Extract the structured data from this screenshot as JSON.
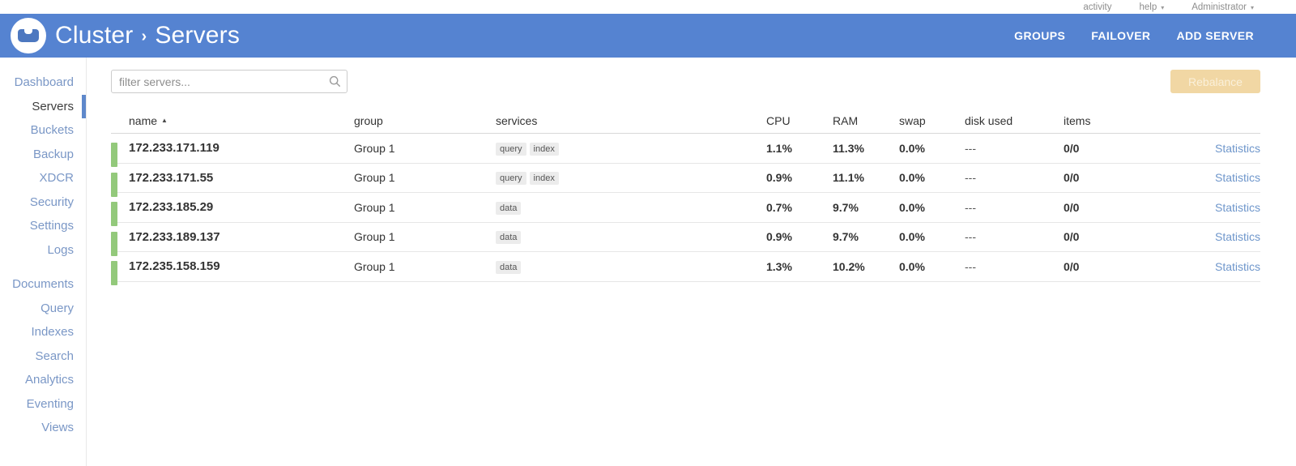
{
  "topbar": {
    "activity_label": "activity",
    "help_label": "help",
    "user_label": "Administrator"
  },
  "icons": {
    "caret_down": "▾",
    "sort_asc": "▲",
    "crumb_sep": "›"
  },
  "header": {
    "breadcrumb_root": "Cluster",
    "breadcrumb_page": "Servers",
    "actions": [
      "GROUPS",
      "FAILOVER",
      "ADD SERVER"
    ]
  },
  "sidebar": {
    "active": "Servers",
    "groups": [
      [
        "Dashboard",
        "Servers",
        "Buckets",
        "Backup",
        "XDCR",
        "Security",
        "Settings",
        "Logs"
      ],
      [
        "Documents",
        "Query",
        "Indexes",
        "Search",
        "Analytics",
        "Eventing",
        "Views"
      ]
    ]
  },
  "toolbar": {
    "filter_placeholder": "filter servers...",
    "rebalance_label": "Rebalance"
  },
  "table": {
    "columns": [
      "name",
      "group",
      "services",
      "CPU",
      "RAM",
      "swap",
      "disk used",
      "items"
    ],
    "sort": {
      "column": "name",
      "direction": "asc"
    },
    "statistics_label": "Statistics",
    "rows": [
      {
        "name": "172.233.171.119",
        "group": "Group 1",
        "services": [
          "query",
          "index"
        ],
        "cpu": "1.1%",
        "ram": "11.3%",
        "swap": "0.0%",
        "disk_used": "---",
        "items": "0/0"
      },
      {
        "name": "172.233.171.55",
        "group": "Group 1",
        "services": [
          "query",
          "index"
        ],
        "cpu": "0.9%",
        "ram": "11.1%",
        "swap": "0.0%",
        "disk_used": "---",
        "items": "0/0"
      },
      {
        "name": "172.233.185.29",
        "group": "Group 1",
        "services": [
          "data"
        ],
        "cpu": "0.7%",
        "ram": "9.7%",
        "swap": "0.0%",
        "disk_used": "---",
        "items": "0/0"
      },
      {
        "name": "172.233.189.137",
        "group": "Group 1",
        "services": [
          "data"
        ],
        "cpu": "0.9%",
        "ram": "9.7%",
        "swap": "0.0%",
        "disk_used": "---",
        "items": "0/0"
      },
      {
        "name": "172.235.158.159",
        "group": "Group 1",
        "services": [
          "data"
        ],
        "cpu": "1.3%",
        "ram": "10.2%",
        "swap": "0.0%",
        "disk_used": "---",
        "items": "0/0"
      }
    ]
  },
  "colors": {
    "header_bg": "#5583d1",
    "active_nav": "#5e88cb",
    "health_green": "#93c97b",
    "rebalance_bg": "#f1d7a4",
    "link_blue": "#6e96cb"
  }
}
